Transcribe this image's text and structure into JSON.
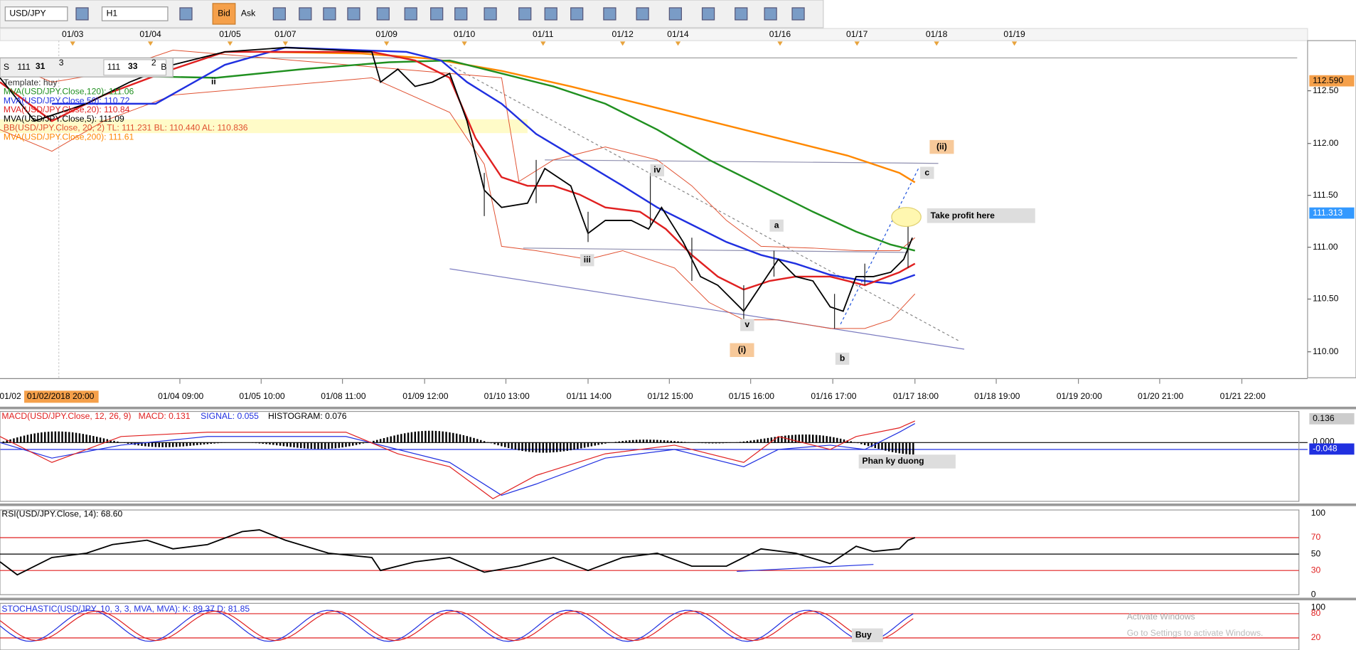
{
  "toolbar": {
    "symbol": "USD/JPY",
    "timeframe": "H1",
    "bid": "Bid",
    "ask": "Ask"
  },
  "trade_widget": {
    "sell": "S",
    "sell_big": "111",
    "sell_price": "31",
    "sell_sup": "3",
    "buy_big": "111",
    "buy_price": "33",
    "buy_sup": "2",
    "buy": "B"
  },
  "top_dates": [
    "01/03",
    "01/04",
    "01/05",
    "01/07",
    "01/09",
    "01/10",
    "01/11",
    "01/12",
    "01/14",
    "01/16",
    "01/17",
    "01/18",
    "01/19"
  ],
  "legend": [
    "Template: huy",
    "MVA(USD/JPY.Close,120): 111.06",
    "MVA(USD/JPY.Close,50): 110.72",
    "MVA(USD/JPY.Close,20): 110.84",
    "MVA(USD/JPY.Close,5): 111.09",
    "BB(USD/JPY.Close, 20, 2)   TL: 111.231   BL: 110.440   AL: 110.836",
    "MVA(USD/JPY.Close,200): 111.61"
  ],
  "price_axis": {
    "labels": [
      "112.50",
      "112.00",
      "111.50",
      "111.00",
      "110.50",
      "110.00"
    ],
    "high": "112.590",
    "current": "111.313"
  },
  "annotations": {
    "ii": "ii",
    "iii": "iii",
    "iv": "iv",
    "v": "v",
    "wave_i": "(i)",
    "a": "a",
    "b": "b",
    "c": "c",
    "wave_ii": "(ii)",
    "take_profit": "Take profit here"
  },
  "time_axis": [
    "01/02",
    "01/02/2018 20:00",
    "01/04 09:00",
    "01/05 10:00",
    "01/08 11:00",
    "01/09 12:00",
    "01/10 13:00",
    "01/11 14:00",
    "01/12 15:00",
    "01/15 16:00",
    "01/16 17:00",
    "01/17 18:00",
    "01/18 19:00",
    "01/19 20:00",
    "01/20 21:00",
    "01/21 22:00"
  ],
  "macd": {
    "name": "MACD(USD/JPY.Close, 12, 26, 9)",
    "macd": "MACD: 0.131",
    "signal": "SIGNAL: 0.055",
    "histogram": "HISTOGRAM: 0.076",
    "axis": [
      "0.136",
      "0.000",
      "-0.048"
    ],
    "note": "Phan ky duong"
  },
  "rsi": {
    "name": "RSI(USD/JPY.Close, 14): 68.60",
    "axis": [
      "100",
      "70",
      "50",
      "30",
      "0"
    ]
  },
  "stochastic": {
    "name": "STOCHASTIC(USD/JPY, 10, 3, 3, MVA, MVA): K: 89.37 D: 81.85",
    "axis": [
      "100",
      "80",
      "20"
    ],
    "note": "Buy"
  },
  "watermark": [
    "Activate Windows",
    "Go to Settings to activate Windows."
  ]
}
